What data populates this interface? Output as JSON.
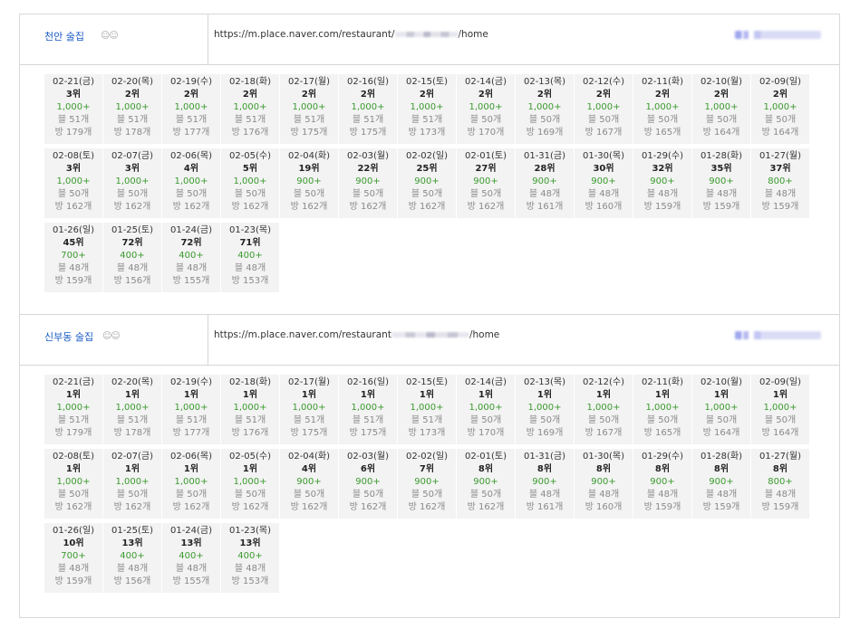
{
  "sections": [
    {
      "place_name": "천안 술집",
      "hand_icon": "hand-emoji-icon",
      "url_prefix": "https://m.place.naver.com/restaurant/",
      "url_suffix": "/home",
      "cells": [
        {
          "date": "02-21(금)",
          "rank": "3위",
          "count": "1,000+",
          "blog": "블 51개",
          "visit": "방 179개"
        },
        {
          "date": "02-20(목)",
          "rank": "2위",
          "count": "1,000+",
          "blog": "블 51개",
          "visit": "방 178개"
        },
        {
          "date": "02-19(수)",
          "rank": "2위",
          "count": "1,000+",
          "blog": "블 51개",
          "visit": "방 177개"
        },
        {
          "date": "02-18(화)",
          "rank": "2위",
          "count": "1,000+",
          "blog": "블 51개",
          "visit": "방 176개"
        },
        {
          "date": "02-17(월)",
          "rank": "2위",
          "count": "1,000+",
          "blog": "블 51개",
          "visit": "방 175개"
        },
        {
          "date": "02-16(일)",
          "rank": "2위",
          "count": "1,000+",
          "blog": "블 51개",
          "visit": "방 175개"
        },
        {
          "date": "02-15(토)",
          "rank": "2위",
          "count": "1,000+",
          "blog": "블 51개",
          "visit": "방 173개"
        },
        {
          "date": "02-14(금)",
          "rank": "2위",
          "count": "1,000+",
          "blog": "블 50개",
          "visit": "방 170개"
        },
        {
          "date": "02-13(목)",
          "rank": "2위",
          "count": "1,000+",
          "blog": "블 50개",
          "visit": "방 169개"
        },
        {
          "date": "02-12(수)",
          "rank": "2위",
          "count": "1,000+",
          "blog": "블 50개",
          "visit": "방 167개"
        },
        {
          "date": "02-11(화)",
          "rank": "2위",
          "count": "1,000+",
          "blog": "블 50개",
          "visit": "방 165개"
        },
        {
          "date": "02-10(월)",
          "rank": "2위",
          "count": "1,000+",
          "blog": "블 50개",
          "visit": "방 164개"
        },
        {
          "date": "02-09(일)",
          "rank": "2위",
          "count": "1,000+",
          "blog": "블 50개",
          "visit": "방 164개"
        },
        {
          "date": "02-08(토)",
          "rank": "3위",
          "count": "1,000+",
          "blog": "블 50개",
          "visit": "방 162개"
        },
        {
          "date": "02-07(금)",
          "rank": "3위",
          "count": "1,000+",
          "blog": "블 50개",
          "visit": "방 162개"
        },
        {
          "date": "02-06(목)",
          "rank": "4위",
          "count": "1,000+",
          "blog": "블 50개",
          "visit": "방 162개"
        },
        {
          "date": "02-05(수)",
          "rank": "5위",
          "count": "1,000+",
          "blog": "블 50개",
          "visit": "방 162개"
        },
        {
          "date": "02-04(화)",
          "rank": "19위",
          "count": "900+",
          "blog": "블 50개",
          "visit": "방 162개"
        },
        {
          "date": "02-03(월)",
          "rank": "22위",
          "count": "900+",
          "blog": "블 50개",
          "visit": "방 162개"
        },
        {
          "date": "02-02(일)",
          "rank": "25위",
          "count": "900+",
          "blog": "블 50개",
          "visit": "방 162개"
        },
        {
          "date": "02-01(토)",
          "rank": "27위",
          "count": "900+",
          "blog": "블 50개",
          "visit": "방 162개"
        },
        {
          "date": "01-31(금)",
          "rank": "28위",
          "count": "900+",
          "blog": "블 48개",
          "visit": "방 161개"
        },
        {
          "date": "01-30(목)",
          "rank": "30위",
          "count": "900+",
          "blog": "블 48개",
          "visit": "방 160개"
        },
        {
          "date": "01-29(수)",
          "rank": "32위",
          "count": "900+",
          "blog": "블 48개",
          "visit": "방 159개"
        },
        {
          "date": "01-28(화)",
          "rank": "35위",
          "count": "900+",
          "blog": "블 48개",
          "visit": "방 159개"
        },
        {
          "date": "01-27(월)",
          "rank": "37위",
          "count": "800+",
          "blog": "블 48개",
          "visit": "방 159개"
        },
        {
          "date": "01-26(일)",
          "rank": "45위",
          "count": "700+",
          "blog": "블 48개",
          "visit": "방 159개"
        },
        {
          "date": "01-25(토)",
          "rank": "72위",
          "count": "400+",
          "blog": "블 48개",
          "visit": "방 156개"
        },
        {
          "date": "01-24(금)",
          "rank": "72위",
          "count": "400+",
          "blog": "블 48개",
          "visit": "방 155개"
        },
        {
          "date": "01-23(목)",
          "rank": "71위",
          "count": "400+",
          "blog": "블 48개",
          "visit": "방 153개"
        }
      ]
    },
    {
      "place_name": "신부동 술집",
      "hand_icon": "hand-emoji-icon",
      "url_prefix": "https://m.place.naver.com/restaurant",
      "url_suffix": "/home",
      "cells": [
        {
          "date": "02-21(금)",
          "rank": "1위",
          "count": "1,000+",
          "blog": "블 51개",
          "visit": "방 179개"
        },
        {
          "date": "02-20(목)",
          "rank": "1위",
          "count": "1,000+",
          "blog": "블 51개",
          "visit": "방 178개"
        },
        {
          "date": "02-19(수)",
          "rank": "1위",
          "count": "1,000+",
          "blog": "블 51개",
          "visit": "방 177개"
        },
        {
          "date": "02-18(화)",
          "rank": "1위",
          "count": "1,000+",
          "blog": "블 51개",
          "visit": "방 176개"
        },
        {
          "date": "02-17(월)",
          "rank": "1위",
          "count": "1,000+",
          "blog": "블 51개",
          "visit": "방 175개"
        },
        {
          "date": "02-16(일)",
          "rank": "1위",
          "count": "1,000+",
          "blog": "블 51개",
          "visit": "방 175개"
        },
        {
          "date": "02-15(토)",
          "rank": "1위",
          "count": "1,000+",
          "blog": "블 51개",
          "visit": "방 173개"
        },
        {
          "date": "02-14(금)",
          "rank": "1위",
          "count": "1,000+",
          "blog": "블 50개",
          "visit": "방 170개"
        },
        {
          "date": "02-13(목)",
          "rank": "1위",
          "count": "1,000+",
          "blog": "블 50개",
          "visit": "방 169개"
        },
        {
          "date": "02-12(수)",
          "rank": "1위",
          "count": "1,000+",
          "blog": "블 50개",
          "visit": "방 167개"
        },
        {
          "date": "02-11(화)",
          "rank": "1위",
          "count": "1,000+",
          "blog": "블 50개",
          "visit": "방 165개"
        },
        {
          "date": "02-10(월)",
          "rank": "1위",
          "count": "1,000+",
          "blog": "블 50개",
          "visit": "방 164개"
        },
        {
          "date": "02-09(일)",
          "rank": "1위",
          "count": "1,000+",
          "blog": "블 50개",
          "visit": "방 164개"
        },
        {
          "date": "02-08(토)",
          "rank": "1위",
          "count": "1,000+",
          "blog": "블 50개",
          "visit": "방 162개"
        },
        {
          "date": "02-07(금)",
          "rank": "1위",
          "count": "1,000+",
          "blog": "블 50개",
          "visit": "방 162개"
        },
        {
          "date": "02-06(목)",
          "rank": "1위",
          "count": "1,000+",
          "blog": "블 50개",
          "visit": "방 162개"
        },
        {
          "date": "02-05(수)",
          "rank": "1위",
          "count": "1,000+",
          "blog": "블 50개",
          "visit": "방 162개"
        },
        {
          "date": "02-04(화)",
          "rank": "4위",
          "count": "900+",
          "blog": "블 50개",
          "visit": "방 162개"
        },
        {
          "date": "02-03(월)",
          "rank": "6위",
          "count": "900+",
          "blog": "블 50개",
          "visit": "방 162개"
        },
        {
          "date": "02-02(일)",
          "rank": "7위",
          "count": "900+",
          "blog": "블 50개",
          "visit": "방 162개"
        },
        {
          "date": "02-01(토)",
          "rank": "8위",
          "count": "900+",
          "blog": "블 50개",
          "visit": "방 162개"
        },
        {
          "date": "01-31(금)",
          "rank": "8위",
          "count": "900+",
          "blog": "블 48개",
          "visit": "방 161개"
        },
        {
          "date": "01-30(목)",
          "rank": "8위",
          "count": "900+",
          "blog": "블 48개",
          "visit": "방 160개"
        },
        {
          "date": "01-29(수)",
          "rank": "8위",
          "count": "900+",
          "blog": "블 48개",
          "visit": "방 159개"
        },
        {
          "date": "01-28(화)",
          "rank": "8위",
          "count": "900+",
          "blog": "블 48개",
          "visit": "방 159개"
        },
        {
          "date": "01-27(월)",
          "rank": "8위",
          "count": "800+",
          "blog": "블 48개",
          "visit": "방 159개"
        },
        {
          "date": "01-26(일)",
          "rank": "10위",
          "count": "700+",
          "blog": "블 48개",
          "visit": "방 159개"
        },
        {
          "date": "01-25(토)",
          "rank": "13위",
          "count": "400+",
          "blog": "블 48개",
          "visit": "방 156개"
        },
        {
          "date": "01-24(금)",
          "rank": "13위",
          "count": "400+",
          "blog": "블 48개",
          "visit": "방 155개"
        },
        {
          "date": "01-23(목)",
          "rank": "13위",
          "count": "400+",
          "blog": "블 48개",
          "visit": "방 153개"
        }
      ]
    }
  ],
  "colors": {
    "place_link": "#1a5bc4",
    "count_green": "#3a9a2e",
    "cell_bg": "#f3f3f3"
  }
}
